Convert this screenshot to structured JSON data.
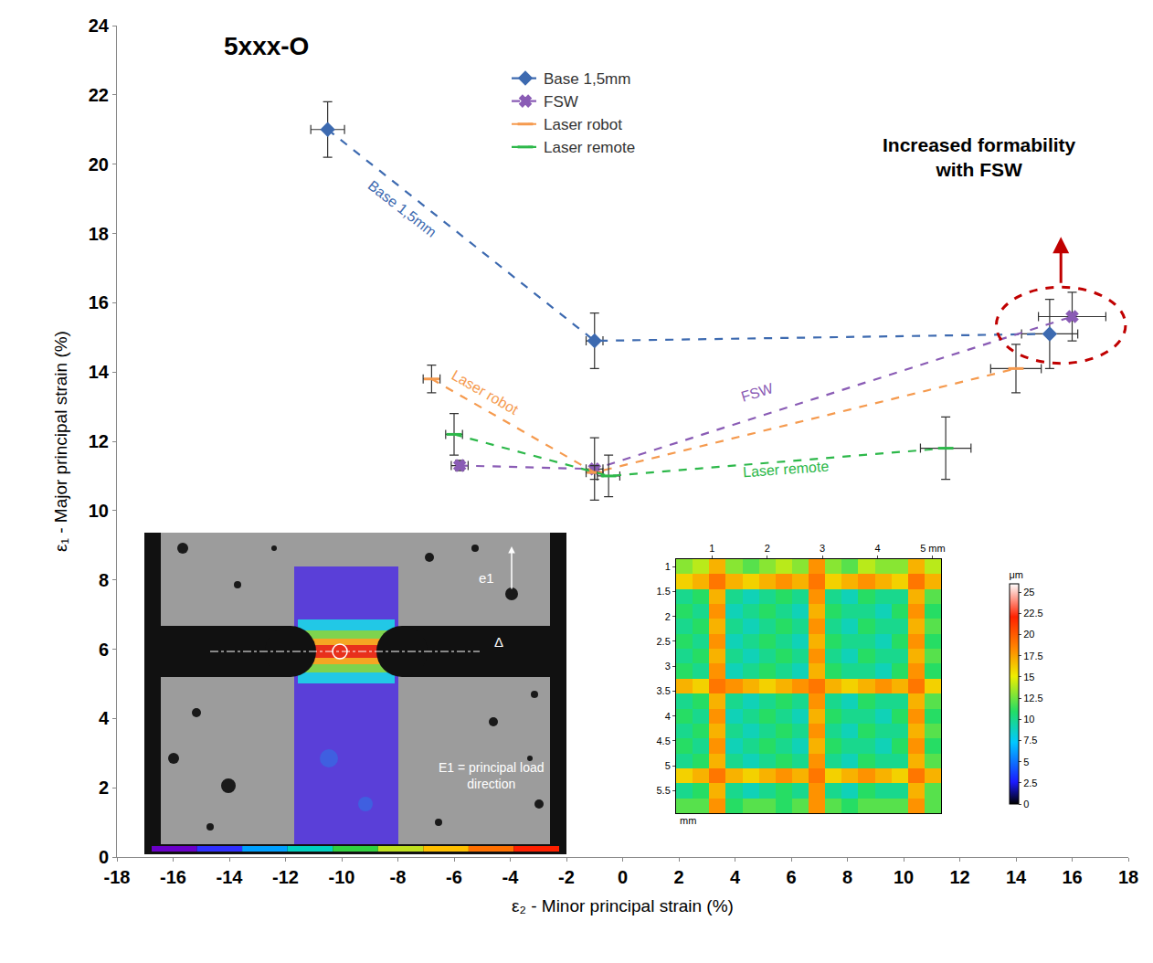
{
  "chart_data": [
    {
      "type": "scatter",
      "title": "5xxx-O",
      "x_label": "ε₂ - Minor principal strain (%)",
      "y_label": "ε₁ - Major principal strain (%)",
      "xlim": [
        -18,
        18
      ],
      "xticks": [
        -18,
        -16,
        -14,
        -12,
        -10,
        -8,
        -6,
        -4,
        -2,
        0,
        2,
        4,
        6,
        8,
        10,
        12,
        14,
        16,
        18
      ],
      "ylim": [
        0,
        24
      ],
      "yticks": [
        0,
        2,
        4,
        6,
        8,
        10,
        12,
        14,
        16,
        18,
        20,
        22,
        24
      ],
      "grid": false,
      "legend": "top",
      "series": [
        {
          "name": "Base 1,5mm",
          "color": "#3d6ab0",
          "marker": "diamond",
          "line_style": "dashed",
          "x": [
            -10.5,
            -1,
            15.2
          ],
          "values": [
            21,
            14.9,
            15.1
          ],
          "x_error": [
            0.6,
            0.3,
            1.0
          ],
          "y_error": [
            0.8,
            0.8,
            1.0
          ]
        },
        {
          "name": "FSW",
          "color": "#8a5cb5",
          "marker": "x",
          "line_style": "dashed",
          "x": [
            -5.8,
            -1,
            16
          ],
          "values": [
            11.3,
            11.2,
            15.6
          ],
          "x_error": [
            0.3,
            0.3,
            1.2
          ],
          "y_error": [
            0.15,
            0.9,
            0.7
          ]
        },
        {
          "name": "Laser robot",
          "color": "#f59a4e",
          "marker": "dash",
          "line_style": "dashed",
          "x": [
            -6.8,
            -1,
            14
          ],
          "values": [
            13.8,
            11.1,
            14.1
          ],
          "x_error": [
            0.3,
            0.3,
            0.9
          ],
          "y_error": [
            0.4,
            0.2,
            0.7
          ]
        },
        {
          "name": "Laser remote",
          "color": "#2db84a",
          "marker": "dash",
          "line_style": "dashed",
          "x": [
            -6,
            -0.5,
            11.5
          ],
          "values": [
            12.2,
            11.0,
            11.8
          ],
          "x_error": [
            0.3,
            0.4,
            0.9
          ],
          "y_error": [
            0.6,
            0.6,
            0.9
          ]
        }
      ],
      "annotations": [
        {
          "text": "Base 1,5mm",
          "x": -7.85,
          "y": 18.7,
          "color": "#3d6ab0"
        },
        {
          "text": "Laser robot",
          "x": -4.9,
          "y": 13.4,
          "color": "#f59a4e"
        },
        {
          "text": "FSW",
          "x": 4.8,
          "y": 13.4,
          "color": "#8a5cb5"
        },
        {
          "text": "Laser remote",
          "x": 5.8,
          "y": 11.2,
          "color": "#2db84a"
        }
      ],
      "highlight": {
        "text": "Increased formability with FSW",
        "x": 12.7,
        "y": 20.2,
        "color": "#c00000"
      }
    },
    {
      "type": "heatmap",
      "x": [
        0.5,
        0.8,
        1.1,
        1.4,
        1.7,
        2.0,
        2.3,
        2.6,
        2.9,
        3.2,
        3.5,
        3.8,
        4.1,
        4.4,
        4.7,
        5.0
      ],
      "y": [
        1.0,
        1.3,
        1.6,
        1.9,
        2.2,
        2.5,
        2.8,
        3.1,
        3.4,
        3.7,
        4.0,
        4.3,
        4.6,
        4.9,
        5.2,
        5.5,
        5.8
      ],
      "values": [
        [
          13,
          14,
          17,
          13,
          12,
          13,
          14,
          13,
          18,
          13,
          12,
          14,
          13,
          13,
          17,
          14
        ],
        [
          16,
          17,
          19,
          17,
          16,
          17,
          18,
          17,
          19,
          16,
          17,
          18,
          17,
          16,
          19,
          17
        ],
        [
          10,
          11,
          17,
          10,
          9,
          10,
          11,
          10,
          18,
          10,
          9,
          11,
          10,
          10,
          17,
          12
        ],
        [
          11,
          10,
          18,
          9,
          10,
          11,
          10,
          9,
          17,
          11,
          10,
          10,
          9,
          11,
          18,
          11
        ],
        [
          10,
          11,
          17,
          10,
          9,
          10,
          11,
          10,
          18,
          10,
          9,
          11,
          10,
          10,
          17,
          12
        ],
        [
          11,
          10,
          18,
          9,
          10,
          11,
          10,
          9,
          17,
          11,
          10,
          10,
          9,
          11,
          18,
          11
        ],
        [
          10,
          11,
          17,
          10,
          9,
          10,
          11,
          10,
          18,
          10,
          9,
          11,
          10,
          10,
          17,
          12
        ],
        [
          11,
          10,
          18,
          9,
          10,
          11,
          10,
          9,
          17,
          11,
          10,
          10,
          9,
          11,
          18,
          11
        ],
        [
          17,
          16,
          19,
          18,
          17,
          16,
          17,
          18,
          19,
          17,
          16,
          17,
          18,
          17,
          19,
          16
        ],
        [
          10,
          11,
          17,
          10,
          9,
          10,
          11,
          10,
          18,
          10,
          9,
          11,
          10,
          10,
          17,
          12
        ],
        [
          11,
          10,
          18,
          9,
          10,
          11,
          10,
          9,
          17,
          11,
          10,
          10,
          9,
          11,
          18,
          11
        ],
        [
          10,
          11,
          17,
          10,
          9,
          10,
          11,
          10,
          18,
          10,
          9,
          11,
          10,
          10,
          17,
          12
        ],
        [
          11,
          10,
          18,
          9,
          10,
          11,
          10,
          9,
          17,
          11,
          10,
          10,
          9,
          11,
          18,
          11
        ],
        [
          10,
          11,
          17,
          10,
          9,
          10,
          11,
          10,
          18,
          10,
          9,
          11,
          10,
          10,
          17,
          12
        ],
        [
          16,
          17,
          19,
          17,
          16,
          17,
          18,
          17,
          19,
          16,
          17,
          18,
          17,
          16,
          19,
          17
        ],
        [
          10,
          11,
          17,
          10,
          9,
          10,
          11,
          10,
          18,
          10,
          9,
          11,
          10,
          10,
          17,
          12
        ],
        [
          12,
          12,
          18,
          11,
          12,
          12,
          11,
          12,
          18,
          12,
          11,
          12,
          12,
          12,
          18,
          12
        ]
      ],
      "xlim": [
        0.35,
        5.15
      ],
      "xticks": [
        1,
        2,
        3,
        4,
        {
          "value": 5,
          "label": "5 mm"
        }
      ],
      "ylim": [
        5.95,
        0.85
      ],
      "yticks": [
        1,
        1.5,
        2,
        2.5,
        3,
        3.5,
        4,
        4.5,
        5,
        5.5
      ],
      "y_label": "mm",
      "colorbar_title": "μm",
      "colorbar_range": [
        0,
        26
      ],
      "colorbar_ticks": [
        0,
        2.5,
        5,
        7.5,
        10,
        12.5,
        15,
        17.5,
        20,
        22.5,
        25
      ]
    }
  ],
  "photo_inset": {
    "direction_label": "e1",
    "section_label": "Δ",
    "caption": "E1 = principal load direction"
  }
}
